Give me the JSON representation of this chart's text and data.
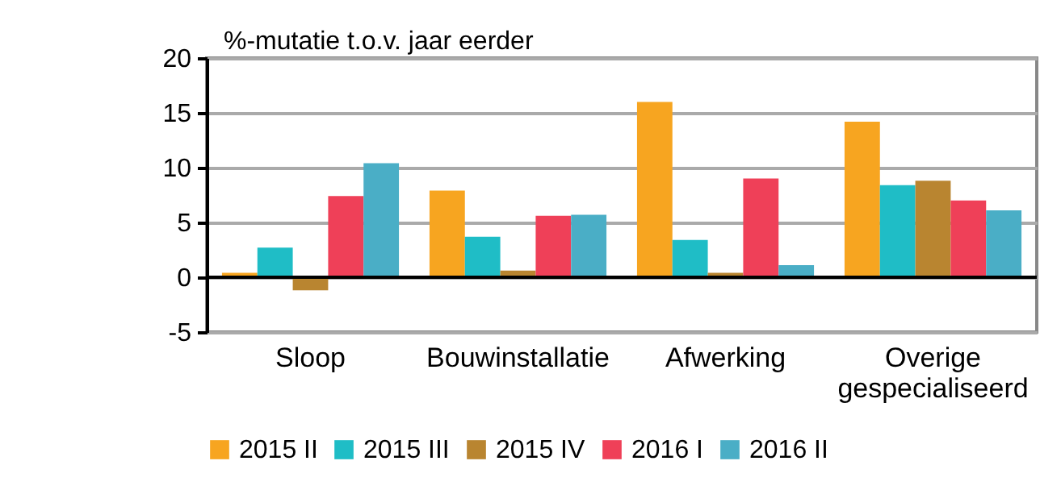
{
  "chart_data": {
    "type": "bar",
    "ylabel": "%-mutatie t.o.v. jaar eerder",
    "categories": [
      "Sloop",
      "Bouwinstallatie",
      "Afwerking",
      "Overige\ngespecialiseerd"
    ],
    "series": [
      {
        "name": "2015 II",
        "color": "#f7a520",
        "values": [
          0.4,
          7.9,
          16.0,
          14.2
        ]
      },
      {
        "name": "2015 III",
        "color": "#1fbdc6",
        "values": [
          2.7,
          3.7,
          3.4,
          8.4
        ]
      },
      {
        "name": "2015 IV",
        "color": "#b98530",
        "values": [
          -1.2,
          0.6,
          0.4,
          8.8
        ]
      },
      {
        "name": "2016 I",
        "color": "#ef4058",
        "values": [
          7.4,
          5.6,
          9.0,
          7.0
        ]
      },
      {
        "name": "2016 II",
        "color": "#4aaec6",
        "values": [
          10.4,
          5.7,
          1.1,
          6.1
        ]
      }
    ],
    "ylim": [
      -5,
      20
    ],
    "yticks": [
      -5,
      0,
      5,
      10,
      15,
      20
    ],
    "grid": "y",
    "legend": "bottom"
  }
}
